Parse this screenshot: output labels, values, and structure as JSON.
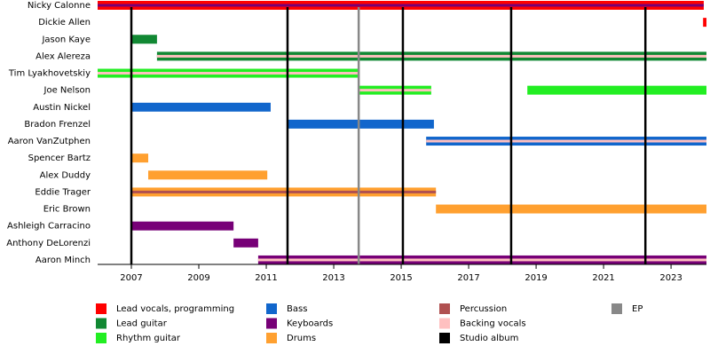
{
  "chart_data": {
    "type": "timeline",
    "xlim": [
      2006,
      2024.05
    ],
    "xticks": [
      2007,
      2009,
      2011,
      2013,
      2015,
      2017,
      2019,
      2021,
      2023
    ],
    "roles": [
      {
        "name": "Lead vocals, programming",
        "color": "#ff0000"
      },
      {
        "name": "Lead guitar",
        "color": "#118833"
      },
      {
        "name": "Rhythm guitar",
        "color": "#22ee22"
      },
      {
        "name": "Bass",
        "color": "#1166cc"
      },
      {
        "name": "Keyboards",
        "color": "#770077"
      },
      {
        "name": "Drums",
        "color": "#ffa030"
      },
      {
        "name": "Percussion",
        "color": "#b05050"
      },
      {
        "name": "Backing vocals",
        "color": "#ffc0c0"
      }
    ],
    "lines": [
      {
        "name": "Studio album",
        "color": "#000000",
        "x": [
          2007.0,
          2011.63,
          2015.05,
          2018.26,
          2022.24
        ]
      },
      {
        "name": "EP",
        "color": "#888888",
        "x": [
          2013.74
        ]
      }
    ],
    "members": [
      {
        "name": "Nicky Calonne",
        "spans": [
          {
            "role": "Lead vocals, programming",
            "stripe": "Keyboards",
            "start": 2006.0,
            "end": 2023.97
          }
        ]
      },
      {
        "name": "Dickie Allen",
        "spans": [
          {
            "role": "Lead vocals, programming",
            "start": 2023.95,
            "end": 2024.05
          }
        ]
      },
      {
        "name": "Jason Kaye",
        "spans": [
          {
            "role": "Lead guitar",
            "start": 2007.0,
            "end": 2007.76
          }
        ]
      },
      {
        "name": "Alex Alereza",
        "spans": [
          {
            "role": "Lead guitar",
            "stripe": "Backing vocals",
            "start": 2007.76,
            "end": 2024.05
          }
        ]
      },
      {
        "name": "Tim Lyakhovetskiy",
        "spans": [
          {
            "role": "Rhythm guitar",
            "stripe": "Backing vocals",
            "start": 2006.0,
            "end": 2013.74
          }
        ]
      },
      {
        "name": "Joe Nelson",
        "spans": [
          {
            "role": "Rhythm guitar",
            "stripe": "Backing vocals",
            "start": 2013.74,
            "end": 2015.89
          },
          {
            "role": "Rhythm guitar",
            "start": 2018.74,
            "end": 2024.05
          }
        ]
      },
      {
        "name": "Austin Nickel",
        "spans": [
          {
            "role": "Bass",
            "start": 2007.0,
            "end": 2011.13
          }
        ]
      },
      {
        "name": "Bradon Frenzel",
        "spans": [
          {
            "role": "Bass",
            "start": 2011.63,
            "end": 2015.97
          }
        ]
      },
      {
        "name": "Aaron VanZutphen",
        "spans": [
          {
            "role": "Bass",
            "stripe": "Backing vocals",
            "start": 2015.74,
            "end": 2024.05
          }
        ]
      },
      {
        "name": "Spencer Bartz",
        "spans": [
          {
            "role": "Drums",
            "start": 2007.0,
            "end": 2007.5
          }
        ]
      },
      {
        "name": "Alex Duddy",
        "spans": [
          {
            "role": "Drums",
            "start": 2007.5,
            "end": 2011.03
          }
        ]
      },
      {
        "name": "Eddie Trager",
        "spans": [
          {
            "role": "Drums",
            "stripe": "Percussion",
            "start": 2007.0,
            "end": 2016.03
          }
        ]
      },
      {
        "name": "Eric Brown",
        "spans": [
          {
            "role": "Drums",
            "start": 2016.03,
            "end": 2024.05
          }
        ]
      },
      {
        "name": "Ashleigh Carracino",
        "spans": [
          {
            "role": "Keyboards",
            "start": 2007.0,
            "end": 2010.03
          }
        ]
      },
      {
        "name": "Anthony DeLorenzi",
        "spans": [
          {
            "role": "Keyboards",
            "start": 2010.03,
            "end": 2010.76
          }
        ]
      },
      {
        "name": "Aaron Minch",
        "spans": [
          {
            "role": "Keyboards",
            "stripe": "Backing vocals",
            "start": 2010.76,
            "end": 2024.05
          }
        ]
      }
    ]
  }
}
